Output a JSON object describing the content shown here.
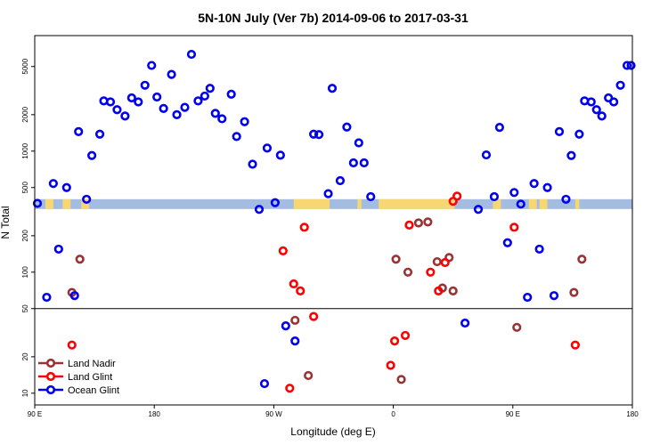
{
  "chart_data": {
    "type": "scatter",
    "title": "5N-10N July (Ver 7b)   2014-09-06 to 2017-03-31",
    "xlabel": "Longitude (deg E)",
    "ylabel": "N Total",
    "xlim": [
      90,
      540
    ],
    "ylim_log": [
      8,
      9000
    ],
    "x_ticks": [
      {
        "value": 90,
        "label": "90 E"
      },
      {
        "value": 180,
        "label": "180"
      },
      {
        "value": 270,
        "label": "90 W"
      },
      {
        "value": 360,
        "label": "0"
      },
      {
        "value": 450,
        "label": "90 E"
      },
      {
        "value": 540,
        "label": "180"
      }
    ],
    "y_ticks": [
      {
        "value": 10,
        "label": "10"
      },
      {
        "value": 20,
        "label": "20"
      },
      {
        "value": 50,
        "label": "50"
      },
      {
        "value": 100,
        "label": "100"
      },
      {
        "value": 200,
        "label": "200"
      },
      {
        "value": 500,
        "label": "500"
      },
      {
        "value": 1000,
        "label": "1000"
      },
      {
        "value": 2000,
        "label": "2000"
      },
      {
        "value": 5000,
        "label": "5000"
      }
    ],
    "reference_line_y": 50,
    "land_mask": {
      "y_value": 365,
      "ocean_color": "#a3bce0",
      "land_color": "#f7d774",
      "land_segments": [
        [
          98,
          104
        ],
        [
          111,
          117
        ],
        [
          125,
          131
        ],
        [
          285,
          312
        ],
        [
          333,
          336
        ],
        [
          349,
          406
        ],
        [
          435,
          441
        ],
        [
          462,
          468
        ],
        [
          470,
          476
        ],
        [
          497,
          500
        ]
      ]
    },
    "series": [
      {
        "name": "Land Nadir",
        "color": "#993333",
        "points": [
          {
            "x": 118,
            "y": 68
          },
          {
            "x": 124,
            "y": 128
          },
          {
            "x": 286,
            "y": 40
          },
          {
            "x": 296,
            "y": 14
          },
          {
            "x": 362,
            "y": 128
          },
          {
            "x": 366,
            "y": 13
          },
          {
            "x": 371,
            "y": 100
          },
          {
            "x": 379,
            "y": 255
          },
          {
            "x": 386,
            "y": 260
          },
          {
            "x": 393,
            "y": 122
          },
          {
            "x": 397,
            "y": 74
          },
          {
            "x": 402,
            "y": 132
          },
          {
            "x": 405,
            "y": 70
          },
          {
            "x": 453,
            "y": 35
          },
          {
            "x": 496,
            "y": 68
          },
          {
            "x": 502,
            "y": 128
          }
        ]
      },
      {
        "name": "Land Glint",
        "color": "#ff0000",
        "points": [
          {
            "x": 118,
            "y": 25
          },
          {
            "x": 277,
            "y": 150
          },
          {
            "x": 285,
            "y": 80
          },
          {
            "x": 290,
            "y": 70
          },
          {
            "x": 293,
            "y": 235
          },
          {
            "x": 282,
            "y": 11
          },
          {
            "x": 300,
            "y": 43
          },
          {
            "x": 358,
            "y": 17
          },
          {
            "x": 361,
            "y": 27
          },
          {
            "x": 369,
            "y": 30
          },
          {
            "x": 372,
            "y": 245
          },
          {
            "x": 388,
            "y": 100
          },
          {
            "x": 394,
            "y": 70
          },
          {
            "x": 399,
            "y": 120
          },
          {
            "x": 405,
            "y": 385
          },
          {
            "x": 408,
            "y": 425
          },
          {
            "x": 451,
            "y": 235
          },
          {
            "x": 497,
            "y": 25
          }
        ]
      },
      {
        "name": "Ocean Glint",
        "color": "#0000ee",
        "points": [
          {
            "x": 92,
            "y": 370
          },
          {
            "x": 99,
            "y": 62
          },
          {
            "x": 104,
            "y": 540
          },
          {
            "x": 108,
            "y": 155
          },
          {
            "x": 114,
            "y": 500
          },
          {
            "x": 120,
            "y": 64
          },
          {
            "x": 123,
            "y": 1450
          },
          {
            "x": 129,
            "y": 400
          },
          {
            "x": 133,
            "y": 920
          },
          {
            "x": 139,
            "y": 1380
          },
          {
            "x": 142,
            "y": 2600
          },
          {
            "x": 147,
            "y": 2550
          },
          {
            "x": 152,
            "y": 2200
          },
          {
            "x": 158,
            "y": 1950
          },
          {
            "x": 163,
            "y": 2750
          },
          {
            "x": 168,
            "y": 2550
          },
          {
            "x": 173,
            "y": 3500
          },
          {
            "x": 178,
            "y": 5100
          },
          {
            "x": 182,
            "y": 2800
          },
          {
            "x": 187,
            "y": 2250
          },
          {
            "x": 193,
            "y": 4300
          },
          {
            "x": 197,
            "y": 2000
          },
          {
            "x": 203,
            "y": 2300
          },
          {
            "x": 208,
            "y": 6300
          },
          {
            "x": 213,
            "y": 2600
          },
          {
            "x": 218,
            "y": 2850
          },
          {
            "x": 222,
            "y": 3300
          },
          {
            "x": 226,
            "y": 2050
          },
          {
            "x": 231,
            "y": 1850
          },
          {
            "x": 238,
            "y": 2950
          },
          {
            "x": 242,
            "y": 1320
          },
          {
            "x": 248,
            "y": 1750
          },
          {
            "x": 254,
            "y": 780
          },
          {
            "x": 259,
            "y": 330
          },
          {
            "x": 263,
            "y": 12
          },
          {
            "x": 265,
            "y": 1060
          },
          {
            "x": 271,
            "y": 375
          },
          {
            "x": 275,
            "y": 925
          },
          {
            "x": 279,
            "y": 36
          },
          {
            "x": 286,
            "y": 27
          },
          {
            "x": 300,
            "y": 1380
          },
          {
            "x": 304,
            "y": 1370
          },
          {
            "x": 311,
            "y": 445
          },
          {
            "x": 314,
            "y": 3300
          },
          {
            "x": 320,
            "y": 570
          },
          {
            "x": 325,
            "y": 1580
          },
          {
            "x": 330,
            "y": 800
          },
          {
            "x": 334,
            "y": 1170
          },
          {
            "x": 338,
            "y": 800
          },
          {
            "x": 343,
            "y": 420
          },
          {
            "x": 414,
            "y": 38
          },
          {
            "x": 424,
            "y": 330
          },
          {
            "x": 430,
            "y": 930
          },
          {
            "x": 436,
            "y": 420
          },
          {
            "x": 440,
            "y": 1570
          },
          {
            "x": 446,
            "y": 175
          },
          {
            "x": 451,
            "y": 455
          },
          {
            "x": 456,
            "y": 365
          },
          {
            "x": 461,
            "y": 62
          },
          {
            "x": 466,
            "y": 540
          },
          {
            "x": 470,
            "y": 155
          },
          {
            "x": 476,
            "y": 500
          },
          {
            "x": 481,
            "y": 64
          },
          {
            "x": 485,
            "y": 1450
          },
          {
            "x": 490,
            "y": 400
          },
          {
            "x": 494,
            "y": 920
          },
          {
            "x": 500,
            "y": 1380
          },
          {
            "x": 504,
            "y": 2600
          },
          {
            "x": 509,
            "y": 2550
          },
          {
            "x": 513,
            "y": 2200
          },
          {
            "x": 517,
            "y": 1950
          },
          {
            "x": 522,
            "y": 2750
          },
          {
            "x": 526,
            "y": 2550
          },
          {
            "x": 531,
            "y": 3500
          },
          {
            "x": 536,
            "y": 5100
          },
          {
            "x": 539,
            "y": 5100
          }
        ]
      }
    ],
    "legend_position": "bottom-left"
  }
}
